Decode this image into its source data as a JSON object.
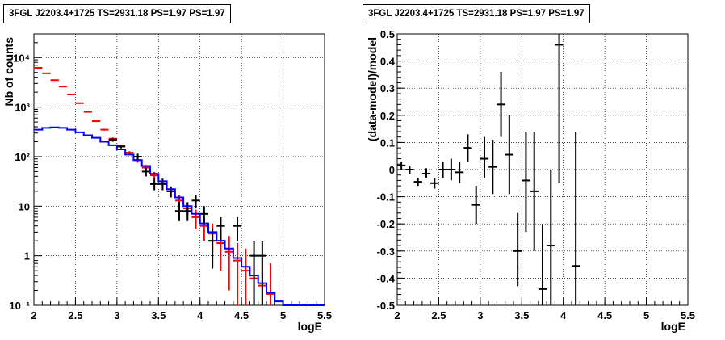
{
  "chart_data": [
    {
      "type": "line",
      "title": "3FGL J2203.4+1725 TS=2931.18 PS=1.97 PS=1.97",
      "xlabel": "logE",
      "ylabel": "Nb of counts",
      "xlim": [
        2,
        5.5
      ],
      "ylim": [
        0.1,
        30000
      ],
      "yscale": "log",
      "grid": true,
      "x_ticks": [
        "2",
        "2.5",
        "3",
        "3.5",
        "4",
        "4.5",
        "5",
        "5.5"
      ],
      "y_ticks": [
        "10⁻¹",
        "1",
        "10",
        "10²",
        "10³",
        "10⁴"
      ],
      "series": [
        {
          "color": "#ff0000",
          "points": [
            {
              "x": 2.05,
              "y": 6200,
              "lo": 6100,
              "hi": 6300
            },
            {
              "x": 2.15,
              "y": 4800,
              "lo": 4700,
              "hi": 4900
            },
            {
              "x": 2.25,
              "y": 3500,
              "lo": 3400,
              "hi": 3600
            },
            {
              "x": 2.35,
              "y": 2600,
              "lo": 2540,
              "hi": 2660
            },
            {
              "x": 2.45,
              "y": 1800,
              "lo": 1750,
              "hi": 1850
            },
            {
              "x": 2.55,
              "y": 1200,
              "lo": 1160,
              "hi": 1240
            },
            {
              "x": 2.65,
              "y": 800,
              "lo": 770,
              "hi": 830
            },
            {
              "x": 2.75,
              "y": 520,
              "lo": 500,
              "hi": 540
            },
            {
              "x": 2.85,
              "y": 350,
              "lo": 335,
              "hi": 365
            },
            {
              "x": 2.95,
              "y": 230,
              "lo": 218,
              "hi": 242
            },
            {
              "x": 3.05,
              "y": 165,
              "lo": 155,
              "hi": 175
            },
            {
              "x": 3.15,
              "y": 120,
              "lo": 111,
              "hi": 129
            },
            {
              "x": 3.25,
              "y": 85,
              "lo": 76,
              "hi": 94
            },
            {
              "x": 3.35,
              "y": 60,
              "lo": 52,
              "hi": 68
            },
            {
              "x": 3.45,
              "y": 42,
              "lo": 35,
              "hi": 49
            },
            {
              "x": 3.55,
              "y": 29,
              "lo": 23,
              "hi": 35
            },
            {
              "x": 3.65,
              "y": 20,
              "lo": 15,
              "hi": 25
            },
            {
              "x": 3.75,
              "y": 13,
              "lo": 9,
              "hi": 17
            },
            {
              "x": 3.85,
              "y": 9,
              "lo": 6,
              "hi": 12
            },
            {
              "x": 3.95,
              "y": 6,
              "lo": 3.5,
              "hi": 8.5
            },
            {
              "x": 4.05,
              "y": 4,
              "lo": 2,
              "hi": 6
            },
            {
              "x": 4.15,
              "y": 2.8,
              "lo": 1.2,
              "hi": 4.5
            },
            {
              "x": 4.25,
              "y": 1.8,
              "lo": 0.5,
              "hi": 3.2
            },
            {
              "x": 4.35,
              "y": 1.2,
              "lo": 0.2,
              "hi": 2.5
            },
            {
              "x": 4.45,
              "y": 0.8,
              "lo": 0.1,
              "hi": 1.8
            },
            {
              "x": 4.55,
              "y": 0.5,
              "lo": 0.1,
              "hi": 1.4
            },
            {
              "x": 4.65,
              "y": 0.35,
              "lo": 0.1,
              "hi": 1.1
            },
            {
              "x": 4.75,
              "y": 0.25,
              "lo": 0.1,
              "hi": 0.9
            },
            {
              "x": 4.85,
              "y": 0.17,
              "lo": 0.1,
              "hi": 0.7
            }
          ]
        },
        {
          "color": "#000000",
          "points": [
            {
              "x": 2.95,
              "y": 220,
              "lo": 200,
              "hi": 240
            },
            {
              "x": 3.05,
              "y": 160,
              "lo": 147,
              "hi": 173
            },
            {
              "x": 3.25,
              "y": 100,
              "lo": 85,
              "hi": 115
            },
            {
              "x": 3.35,
              "y": 50,
              "lo": 40,
              "hi": 60
            },
            {
              "x": 3.45,
              "y": 28,
              "lo": 21,
              "hi": 36
            },
            {
              "x": 3.55,
              "y": 28,
              "lo": 21,
              "hi": 36
            },
            {
              "x": 3.65,
              "y": 20,
              "lo": 15,
              "hi": 25
            },
            {
              "x": 3.75,
              "y": 8,
              "lo": 5,
              "hi": 12
            },
            {
              "x": 3.85,
              "y": 8,
              "lo": 5,
              "hi": 12
            },
            {
              "x": 3.95,
              "y": 13,
              "lo": 9,
              "hi": 17
            },
            {
              "x": 4.05,
              "y": 7,
              "lo": 4.5,
              "hi": 10
            },
            {
              "x": 4.15,
              "y": 2,
              "lo": 0.55,
              "hi": 3.6
            },
            {
              "x": 4.25,
              "y": 4,
              "lo": 2,
              "hi": 6
            },
            {
              "x": 4.45,
              "y": 4,
              "lo": 2,
              "hi": 6
            },
            {
              "x": 4.65,
              "y": 1,
              "lo": 0.1,
              "hi": 2
            },
            {
              "x": 4.75,
              "y": 1,
              "lo": 0.1,
              "hi": 2
            }
          ]
        },
        {
          "color": "#0000ff",
          "step_edges": [
            2.0,
            2.1,
            2.2,
            2.3,
            2.4,
            2.5,
            2.6,
            2.7,
            2.8,
            2.9,
            3.0,
            3.1,
            3.2,
            3.3,
            3.4,
            3.5,
            3.6,
            3.7,
            3.8,
            3.9,
            4.0,
            4.1,
            4.2,
            4.3,
            4.4,
            4.5,
            4.6,
            4.7,
            4.8,
            4.9,
            5.0,
            5.5
          ],
          "step_values": [
            350,
            380,
            390,
            380,
            350,
            310,
            270,
            240,
            200,
            170,
            140,
            110,
            85,
            65,
            45,
            32,
            22,
            15,
            10,
            7,
            4.5,
            3,
            2,
            1.4,
            0.9,
            0.6,
            0.4,
            0.28,
            0.18,
            0.12,
            0.1
          ]
        }
      ]
    },
    {
      "type": "scatter",
      "title": "3FGL J2203.4+1725 TS=2931.18 PS=1.97 PS=1.97",
      "xlabel": "logE",
      "ylabel": "(data-model)/model",
      "xlim": [
        2,
        5.5
      ],
      "ylim": [
        -0.5,
        0.5
      ],
      "grid": true,
      "x_ticks": [
        "2",
        "2.5",
        "3",
        "3.5",
        "4",
        "4.5",
        "5",
        "5.5"
      ],
      "y_ticks": [
        "-0.5",
        "-0.4",
        "-0.3",
        "-0.2",
        "-0.1",
        "0",
        "0.1",
        "0.2",
        "0.3",
        "0.4",
        "0.5"
      ],
      "series": [
        {
          "color": "#000000",
          "points": [
            {
              "x": 2.05,
              "y": 0.015,
              "lo": 0.0,
              "hi": 0.03
            },
            {
              "x": 2.15,
              "y": 0.0,
              "lo": -0.015,
              "hi": 0.015
            },
            {
              "x": 2.25,
              "y": -0.045,
              "lo": -0.06,
              "hi": -0.03
            },
            {
              "x": 2.35,
              "y": -0.015,
              "lo": -0.03,
              "hi": 0.005
            },
            {
              "x": 2.45,
              "y": -0.05,
              "lo": -0.07,
              "hi": -0.03
            },
            {
              "x": 2.55,
              "y": 0.0,
              "lo": -0.03,
              "hi": 0.03
            },
            {
              "x": 2.65,
              "y": 0.0,
              "lo": -0.04,
              "hi": 0.04
            },
            {
              "x": 2.75,
              "y": -0.01,
              "lo": -0.05,
              "hi": 0.03
            },
            {
              "x": 2.85,
              "y": 0.08,
              "lo": 0.03,
              "hi": 0.13
            },
            {
              "x": 2.95,
              "y": -0.13,
              "lo": -0.2,
              "hi": -0.06
            },
            {
              "x": 3.05,
              "y": 0.04,
              "lo": -0.03,
              "hi": 0.12
            },
            {
              "x": 3.15,
              "y": 0.01,
              "lo": -0.09,
              "hi": 0.11
            },
            {
              "x": 3.25,
              "y": 0.24,
              "lo": 0.12,
              "hi": 0.36
            },
            {
              "x": 3.35,
              "y": 0.055,
              "lo": -0.09,
              "hi": 0.2
            },
            {
              "x": 3.45,
              "y": -0.3,
              "lo": -0.43,
              "hi": -0.16
            },
            {
              "x": 3.55,
              "y": -0.04,
              "lo": -0.23,
              "hi": 0.14
            },
            {
              "x": 3.65,
              "y": -0.08,
              "lo": -0.3,
              "hi": 0.14
            },
            {
              "x": 3.75,
              "y": -0.44,
              "lo": -0.5,
              "hi": -0.2
            },
            {
              "x": 3.85,
              "y": -0.28,
              "lo": -0.5,
              "hi": 0.0
            },
            {
              "x": 3.95,
              "y": 0.46,
              "lo": -0.05,
              "hi": 0.5
            },
            {
              "x": 4.15,
              "y": -0.355,
              "lo": -0.5,
              "hi": 0.14
            }
          ]
        }
      ]
    }
  ]
}
